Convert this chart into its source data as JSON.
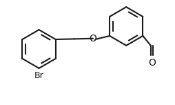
{
  "bg_color": "#ffffff",
  "line_color": "#1a1a1a",
  "line_width": 1.5,
  "font_size_label": 9,
  "label_Br": "Br",
  "label_O": "O",
  "label_CHO": "O"
}
